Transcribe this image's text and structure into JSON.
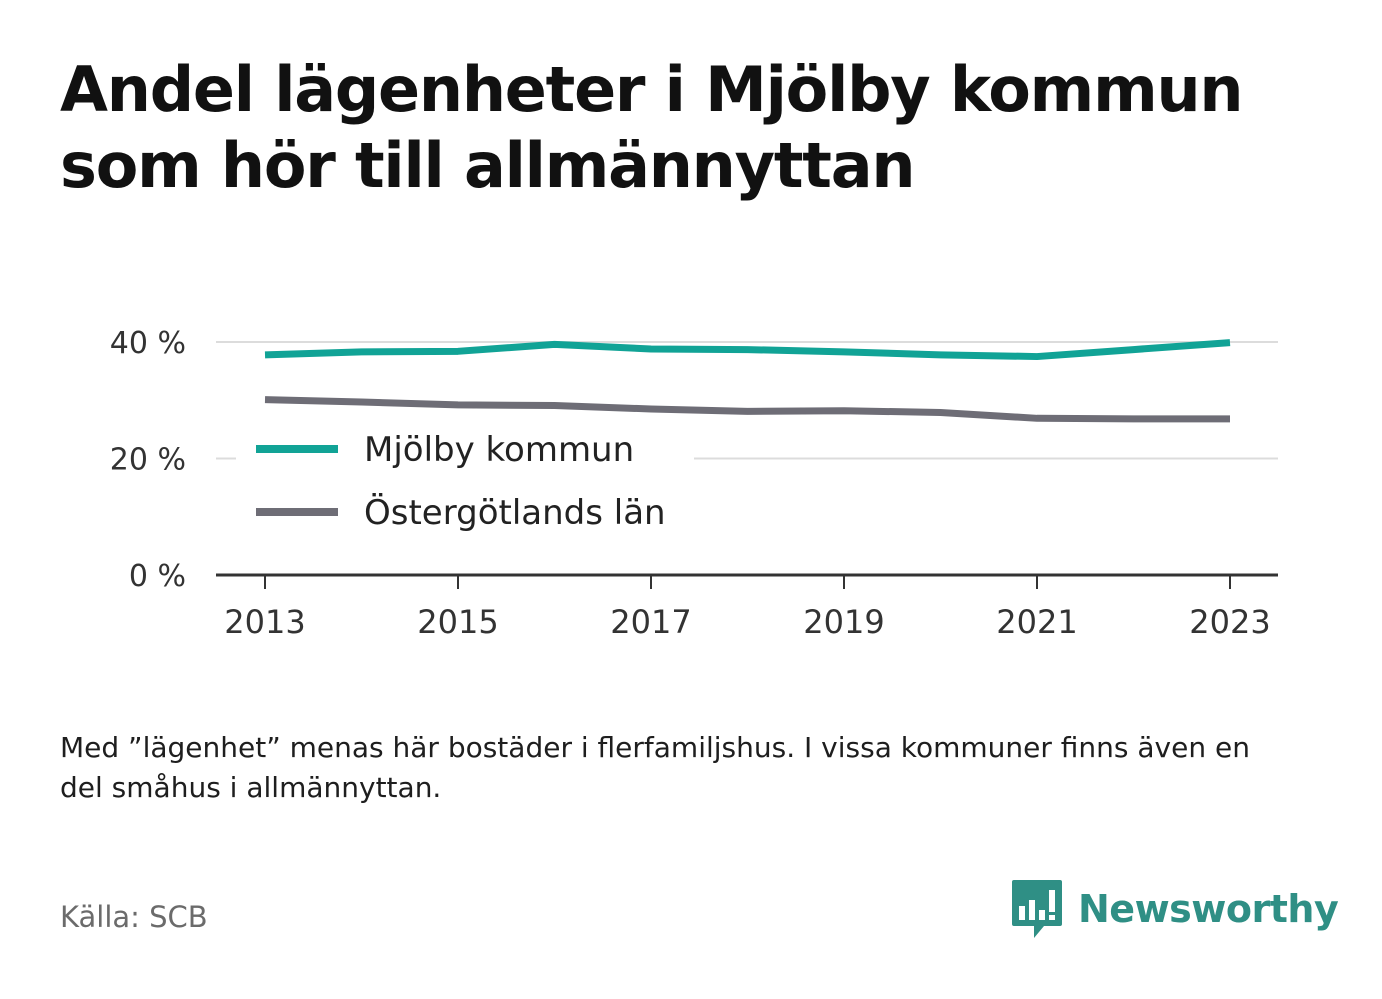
{
  "title": "Andel lägenheter i Mjölby kommun som hör till allmännyttan",
  "note": "Med ”lägenhet” menas här bostäder i flerfamiljshus. I vissa kommuner finns även en del småhus i allmännyttan.",
  "source": "Källa: SCB",
  "brand": {
    "name": "Newsworthy",
    "icon": "newsworthy-logo-icon",
    "color": "#2f8f85"
  },
  "colors": {
    "mjolby": "#11a396",
    "ostergotland": "#6e6d76",
    "grid": "#dcdcdc",
    "axis": "#333333"
  },
  "chart_data": {
    "type": "line",
    "x": [
      2013,
      2014,
      2015,
      2016,
      2017,
      2018,
      2019,
      2020,
      2021,
      2022,
      2023
    ],
    "x_ticks": [
      "2013",
      "2015",
      "2017",
      "2019",
      "2021",
      "2023"
    ],
    "y_ticks": [
      {
        "value": 0,
        "label": "0 %"
      },
      {
        "value": 20,
        "label": "20 %"
      },
      {
        "value": 40,
        "label": "40 %"
      }
    ],
    "ylim": [
      0,
      40
    ],
    "grid": true,
    "legend_position": "left",
    "series": [
      {
        "name": "Mjölby kommun",
        "color": "#11a396",
        "values": [
          37.8,
          38.3,
          38.4,
          39.6,
          38.8,
          38.7,
          38.3,
          37.8,
          37.5,
          38.7,
          39.9
        ]
      },
      {
        "name": "Östergötlands län",
        "color": "#6e6d76",
        "values": [
          30.1,
          29.7,
          29.2,
          29.1,
          28.5,
          28.1,
          28.2,
          27.9,
          26.9,
          26.8,
          26.8
        ]
      }
    ]
  }
}
